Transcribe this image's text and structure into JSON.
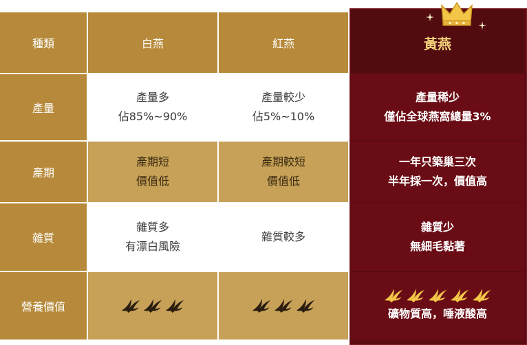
{
  "table": {
    "header": {
      "label": "種類",
      "white_bird": "白燕",
      "red_bird": "紅燕",
      "golden_bird": "黃燕"
    },
    "rows": [
      {
        "label": "產量",
        "white": [
          "產量多",
          "佔85%~90%"
        ],
        "red": [
          "產量較少",
          "佔5%~10%"
        ],
        "golden": [
          "產量稀少",
          "僅佔全球燕窩總量3%"
        ]
      },
      {
        "label": "產期",
        "white": [
          "產期短",
          "價值低"
        ],
        "red": [
          "產期較短",
          "價值低"
        ],
        "golden": [
          "一年只築巢三次",
          "半年採一次，價值高"
        ]
      },
      {
        "label": "雜質",
        "white": [
          "雜質多",
          "有漂白風險"
        ],
        "red": [
          "雜質較多"
        ],
        "golden": [
          "雜質少",
          "無細毛黏著"
        ]
      },
      {
        "label": "營養價值",
        "white_rating": 3,
        "red_rating": 3,
        "golden_rating": 5,
        "golden_note": "礦物質高，唾液酸高"
      }
    ]
  },
  "colors": {
    "gold_dark": "#b68a3a",
    "gold_light": "#c6a157",
    "burgundy": "#6a0c15",
    "burgundy_dark": "#520c10",
    "crown": "#f3c548"
  },
  "icons": {
    "rating": "swallow-icon",
    "crown": "crown-icon",
    "sparkle": "sparkle-icon"
  }
}
